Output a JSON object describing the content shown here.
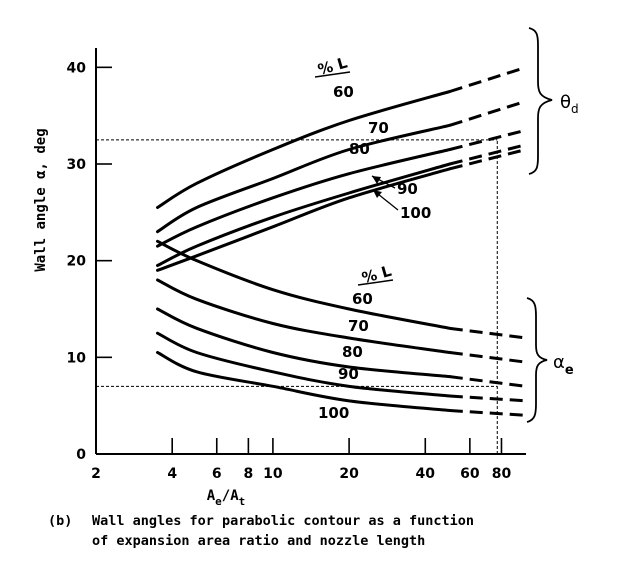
{
  "chart_data": {
    "type": "line",
    "x_scale": "log",
    "xlim": [
      2,
      100
    ],
    "ylim": [
      0,
      42
    ],
    "grid": false,
    "x_ticks": [
      2,
      4,
      6,
      8,
      10,
      20,
      40,
      60,
      80
    ],
    "x_tick_labels": [
      "2",
      "4",
      "6",
      "8",
      "10",
      "20",
      "40",
      "60",
      "80"
    ],
    "y_ticks": [
      0,
      10,
      20,
      30,
      40
    ],
    "y_tick_labels": [
      "0",
      "10",
      "20",
      "30",
      "40"
    ],
    "xlabel_main": "A",
    "xlabel_sub1": "e",
    "xlabel_sep": "/A",
    "xlabel_sub2": "t",
    "ylabel": "Wall angle α, deg",
    "pct_l_label": "% L",
    "caption_tag": "(b)",
    "caption_line1": "Wall angles for parabolic contour as a function",
    "caption_line2": "of expansion area ratio and nozzle length",
    "theta_label": "θ",
    "theta_sub": "d",
    "alpha_label": "α",
    "alpha_sub": "e",
    "series": [
      {
        "group": "theta_d",
        "name": "60",
        "solid_x": [
          3.5,
          5,
          10,
          20,
          50
        ],
        "solid_y": [
          25.5,
          28,
          31.5,
          34.5,
          37.5
        ],
        "dashed_x": [
          50,
          100
        ],
        "dashed_y": [
          37.5,
          40
        ]
      },
      {
        "group": "theta_d",
        "name": "70",
        "solid_x": [
          3.5,
          5,
          10,
          20,
          50
        ],
        "solid_y": [
          23,
          25.5,
          28.5,
          31.5,
          34
        ],
        "dashed_x": [
          50,
          100
        ],
        "dashed_y": [
          34,
          36.5
        ]
      },
      {
        "group": "theta_d",
        "name": "80",
        "solid_x": [
          3.5,
          5,
          10,
          20,
          50
        ],
        "solid_y": [
          21.5,
          23.5,
          26.5,
          29,
          31.5
        ],
        "dashed_x": [
          50,
          100
        ],
        "dashed_y": [
          31.5,
          33.5
        ]
      },
      {
        "group": "theta_d",
        "name": "90",
        "solid_x": [
          3.5,
          5,
          10,
          20,
          50
        ],
        "solid_y": [
          19.5,
          21.5,
          24.5,
          27,
          30
        ],
        "dashed_x": [
          50,
          100
        ],
        "dashed_y": [
          30,
          32
        ]
      },
      {
        "group": "theta_d",
        "name": "100",
        "solid_x": [
          3.5,
          5,
          10,
          20,
          50
        ],
        "solid_y": [
          19,
          20.5,
          23.5,
          26.5,
          29.5
        ],
        "dashed_x": [
          50,
          100
        ],
        "dashed_y": [
          29.5,
          31.5
        ]
      },
      {
        "group": "alpha_e",
        "name": "60",
        "solid_x": [
          3.5,
          5,
          10,
          20,
          50
        ],
        "solid_y": [
          22,
          20,
          17,
          15,
          13
        ],
        "dashed_x": [
          50,
          100
        ],
        "dashed_y": [
          13,
          12
        ]
      },
      {
        "group": "alpha_e",
        "name": "70",
        "solid_x": [
          3.5,
          5,
          10,
          20,
          50
        ],
        "solid_y": [
          18,
          16,
          13.5,
          12,
          10.5
        ],
        "dashed_x": [
          50,
          100
        ],
        "dashed_y": [
          10.5,
          9.5
        ]
      },
      {
        "group": "alpha_e",
        "name": "80",
        "solid_x": [
          3.5,
          5,
          10,
          20,
          50
        ],
        "solid_y": [
          15,
          13,
          10.5,
          9,
          8
        ],
        "dashed_x": [
          50,
          100
        ],
        "dashed_y": [
          8,
          7
        ]
      },
      {
        "group": "alpha_e",
        "name": "90",
        "solid_x": [
          3.5,
          5,
          10,
          20,
          50
        ],
        "solid_y": [
          12.5,
          10.5,
          8.5,
          7,
          6
        ],
        "dashed_x": [
          50,
          100
        ],
        "dashed_y": [
          6,
          5.5
        ]
      },
      {
        "group": "alpha_e",
        "name": "100",
        "solid_x": [
          3.5,
          5,
          10,
          20,
          50
        ],
        "solid_y": [
          10.5,
          8.5,
          7,
          5.5,
          4.5
        ],
        "dashed_x": [
          50,
          100
        ],
        "dashed_y": [
          4.5,
          4
        ]
      }
    ],
    "reference_lines": [
      {
        "type": "horizontal",
        "y": 32.5,
        "x_from": 2,
        "x_to": 77
      },
      {
        "type": "horizontal",
        "y": 7,
        "x_from": 2,
        "x_to": 77
      },
      {
        "type": "vertical",
        "x": 77,
        "y_from": 0,
        "y_to": 32.5
      }
    ]
  }
}
